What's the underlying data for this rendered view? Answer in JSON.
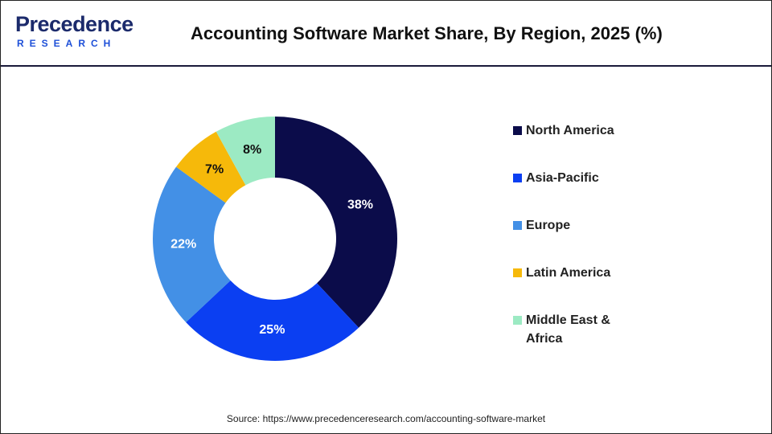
{
  "logo": {
    "name": "Precedence",
    "tagline": "RESEARCH"
  },
  "chart_data": {
    "type": "donut",
    "title": "Accounting Software Market Share, By Region, 2025 (%)",
    "categories": [
      "North America",
      "Asia-Pacific",
      "Europe",
      "Latin America",
      "Middle East & Africa"
    ],
    "values": [
      38,
      25,
      22,
      7,
      8
    ],
    "value_labels": [
      "38%",
      "25%",
      "22%",
      "7%",
      "8%"
    ],
    "colors": [
      "#0b0c4a",
      "#0b3ff2",
      "#4390e6",
      "#f6b90a",
      "#9ceac3"
    ],
    "legend": "right",
    "source": "Source: https://www.precedenceresearch.com/accounting-software-market"
  }
}
